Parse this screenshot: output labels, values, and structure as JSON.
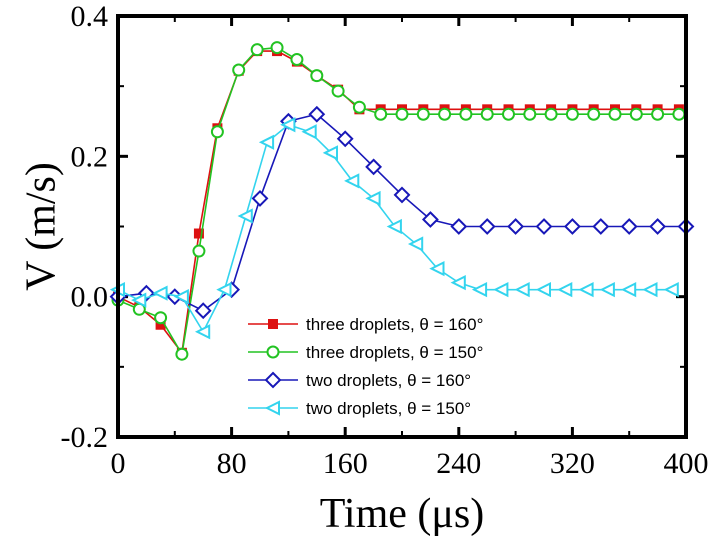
{
  "chart_data": {
    "type": "line",
    "xlabel": "Time (μs)",
    "ylabel": "V (m/s)",
    "xlim": [
      0,
      400
    ],
    "ylim": [
      -0.2,
      0.4
    ],
    "xticks": [
      0,
      80,
      160,
      240,
      320,
      400
    ],
    "xtick_labels": [
      "0",
      "80",
      "160",
      "240",
      "320",
      "400"
    ],
    "yticks": [
      -0.2,
      0.0,
      0.2,
      0.4
    ],
    "ytick_labels": [
      "-0.2",
      "0.0",
      "0.2",
      "0.4"
    ],
    "grid": false,
    "legend_position": "lower-center",
    "series": [
      {
        "name": "three droplets, θ = 160°",
        "color": "#dd1111",
        "marker": "filled-square",
        "x": [
          0,
          15,
          30,
          45,
          57,
          70,
          85,
          98,
          112,
          126,
          140,
          155,
          170,
          185,
          200,
          215,
          230,
          245,
          260,
          275,
          290,
          305,
          320,
          335,
          350,
          365,
          380,
          395
        ],
        "y": [
          0.0,
          -0.015,
          -0.04,
          -0.08,
          0.09,
          0.24,
          0.322,
          0.35,
          0.35,
          0.335,
          0.315,
          0.295,
          0.267,
          0.267,
          0.267,
          0.267,
          0.267,
          0.267,
          0.267,
          0.267,
          0.267,
          0.267,
          0.267,
          0.267,
          0.267,
          0.267,
          0.267,
          0.267
        ]
      },
      {
        "name": "three droplets, θ = 150°",
        "color": "#22c322",
        "marker": "open-circle",
        "x": [
          0,
          15,
          30,
          45,
          57,
          70,
          85,
          98,
          112,
          126,
          140,
          155,
          170,
          185,
          200,
          215,
          230,
          245,
          260,
          275,
          290,
          305,
          320,
          335,
          350,
          365,
          380,
          395
        ],
        "y": [
          -0.005,
          -0.018,
          -0.03,
          -0.082,
          0.065,
          0.235,
          0.323,
          0.352,
          0.355,
          0.338,
          0.315,
          0.293,
          0.27,
          0.26,
          0.26,
          0.26,
          0.26,
          0.26,
          0.26,
          0.26,
          0.26,
          0.26,
          0.26,
          0.26,
          0.26,
          0.26,
          0.26,
          0.26
        ]
      },
      {
        "name": "two droplets, θ = 160°",
        "color": "#1818b8",
        "marker": "open-diamond",
        "x": [
          0,
          20,
          40,
          60,
          80,
          100,
          120,
          140,
          160,
          180,
          200,
          220,
          240,
          260,
          280,
          300,
          320,
          340,
          360,
          380,
          400
        ],
        "y": [
          0.0,
          0.005,
          0.0,
          -0.02,
          0.01,
          0.14,
          0.25,
          0.26,
          0.225,
          0.185,
          0.145,
          0.11,
          0.1,
          0.1,
          0.1,
          0.1,
          0.1,
          0.1,
          0.1,
          0.1,
          0.1
        ]
      },
      {
        "name": "two droplets, θ = 150°",
        "color": "#33d4ee",
        "marker": "open-triangle-left",
        "x": [
          0,
          15,
          30,
          45,
          60,
          75,
          90,
          105,
          120,
          135,
          150,
          165,
          180,
          195,
          210,
          225,
          240,
          255,
          270,
          285,
          300,
          315,
          330,
          345,
          360,
          375,
          390
        ],
        "y": [
          0.01,
          -0.005,
          0.005,
          0.0,
          -0.05,
          0.01,
          0.115,
          0.22,
          0.245,
          0.235,
          0.205,
          0.165,
          0.14,
          0.1,
          0.075,
          0.04,
          0.02,
          0.01,
          0.01,
          0.01,
          0.01,
          0.01,
          0.01,
          0.01,
          0.01,
          0.01,
          0.01
        ]
      }
    ]
  }
}
